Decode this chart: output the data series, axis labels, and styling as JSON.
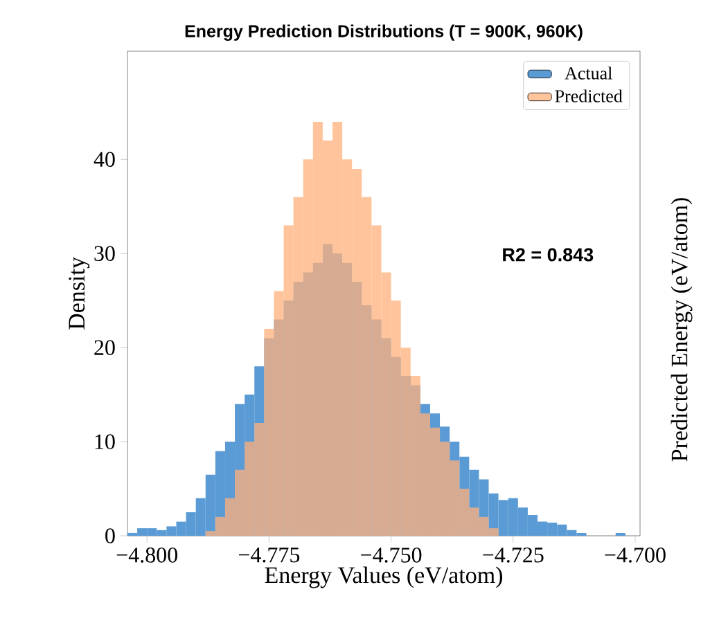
{
  "chart_data": {
    "type": "histogram",
    "title": "Energy Prediction Distributions (T = 900K, 960K)",
    "xlabel": "Energy Values (eV/atom)",
    "ylabel": "Density",
    "y2label": "Predicted Energy (eV/atom)",
    "annotations": [
      "R2 = 0.843"
    ],
    "xlim": [
      -4.804,
      -4.699
    ],
    "ylim": [
      0,
      51.5
    ],
    "xticks": [
      {
        "value": -4.8,
        "label": "−4.800"
      },
      {
        "value": -4.775,
        "label": "−4.775"
      },
      {
        "value": -4.75,
        "label": "−4.750"
      },
      {
        "value": -4.725,
        "label": "−4.725"
      },
      {
        "value": -4.7,
        "label": "−4.700"
      }
    ],
    "yticks": [
      0,
      10,
      20,
      30,
      40
    ],
    "legend": "top right",
    "bins": [
      -4.804,
      -4.802,
      -4.8,
      -4.798,
      -4.796,
      -4.794,
      -4.792,
      -4.79,
      -4.788,
      -4.786,
      -4.784,
      -4.782,
      -4.78,
      -4.778,
      -4.776,
      -4.774,
      -4.772,
      -4.77,
      -4.768,
      -4.766,
      -4.764,
      -4.762,
      -4.76,
      -4.758,
      -4.756,
      -4.754,
      -4.752,
      -4.75,
      -4.748,
      -4.746,
      -4.744,
      -4.742,
      -4.74,
      -4.738,
      -4.736,
      -4.734,
      -4.732,
      -4.73,
      -4.728,
      -4.726,
      -4.724,
      -4.722,
      -4.72,
      -4.718,
      -4.716,
      -4.714,
      -4.712,
      -4.71,
      -4.708,
      -4.706,
      -4.704,
      -4.702,
      -4.7
    ],
    "series": [
      {
        "name": "Actual",
        "color": "#5b9bd5",
        "values": [
          0.3,
          0.8,
          0.8,
          0.6,
          1.0,
          1.5,
          2.5,
          4,
          6.5,
          9,
          10,
          14,
          15,
          18,
          21,
          23,
          25,
          27,
          28,
          29,
          31,
          30,
          29,
          27,
          24.5,
          23,
          21,
          19,
          17,
          16,
          14,
          13,
          11.6,
          10,
          8.4,
          7,
          6,
          4.5,
          3.8,
          4,
          3,
          2.2,
          1.5,
          1.4,
          1.2,
          0.6,
          0.3,
          0,
          0,
          0,
          0.3,
          0
        ]
      },
      {
        "name": "Predicted",
        "color": "#ffb07a",
        "values": [
          0,
          0,
          0,
          0,
          0,
          0,
          0,
          0,
          0.5,
          2,
          4,
          7,
          10,
          12,
          22,
          26,
          33,
          36,
          40,
          44,
          42,
          44,
          40,
          39,
          36,
          33,
          28,
          25,
          20,
          17,
          13,
          11.5,
          10,
          8,
          5,
          3,
          2,
          0.8,
          0,
          0,
          0,
          0,
          0,
          0,
          0,
          0,
          0,
          0,
          0,
          0,
          0,
          0
        ]
      }
    ]
  }
}
